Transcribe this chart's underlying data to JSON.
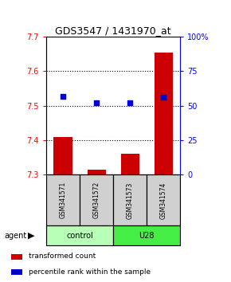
{
  "title": "GDS3547 / 1431970_at",
  "samples": [
    "GSM341571",
    "GSM341572",
    "GSM341573",
    "GSM341574"
  ],
  "bar_values": [
    7.41,
    7.315,
    7.36,
    7.655
  ],
  "bar_bottom": 7.3,
  "percentile_values": [
    57,
    52,
    52,
    56
  ],
  "ylim_left": [
    7.3,
    7.7
  ],
  "ylim_right": [
    0,
    100
  ],
  "yticks_left": [
    7.3,
    7.4,
    7.5,
    7.6,
    7.7
  ],
  "yticks_right": [
    0,
    25,
    50,
    75,
    100
  ],
  "bar_color": "#cc0000",
  "dot_color": "#0000cc",
  "control_color": "#b8ffb8",
  "u28_color": "#44ee44",
  "sample_box_color": "#d0d0d0",
  "legend_items": [
    "transformed count",
    "percentile rank within the sample"
  ],
  "legend_colors": [
    "#cc0000",
    "#0000cc"
  ],
  "grid_yticks": [
    7.4,
    7.5,
    7.6
  ],
  "bar_width": 0.55
}
